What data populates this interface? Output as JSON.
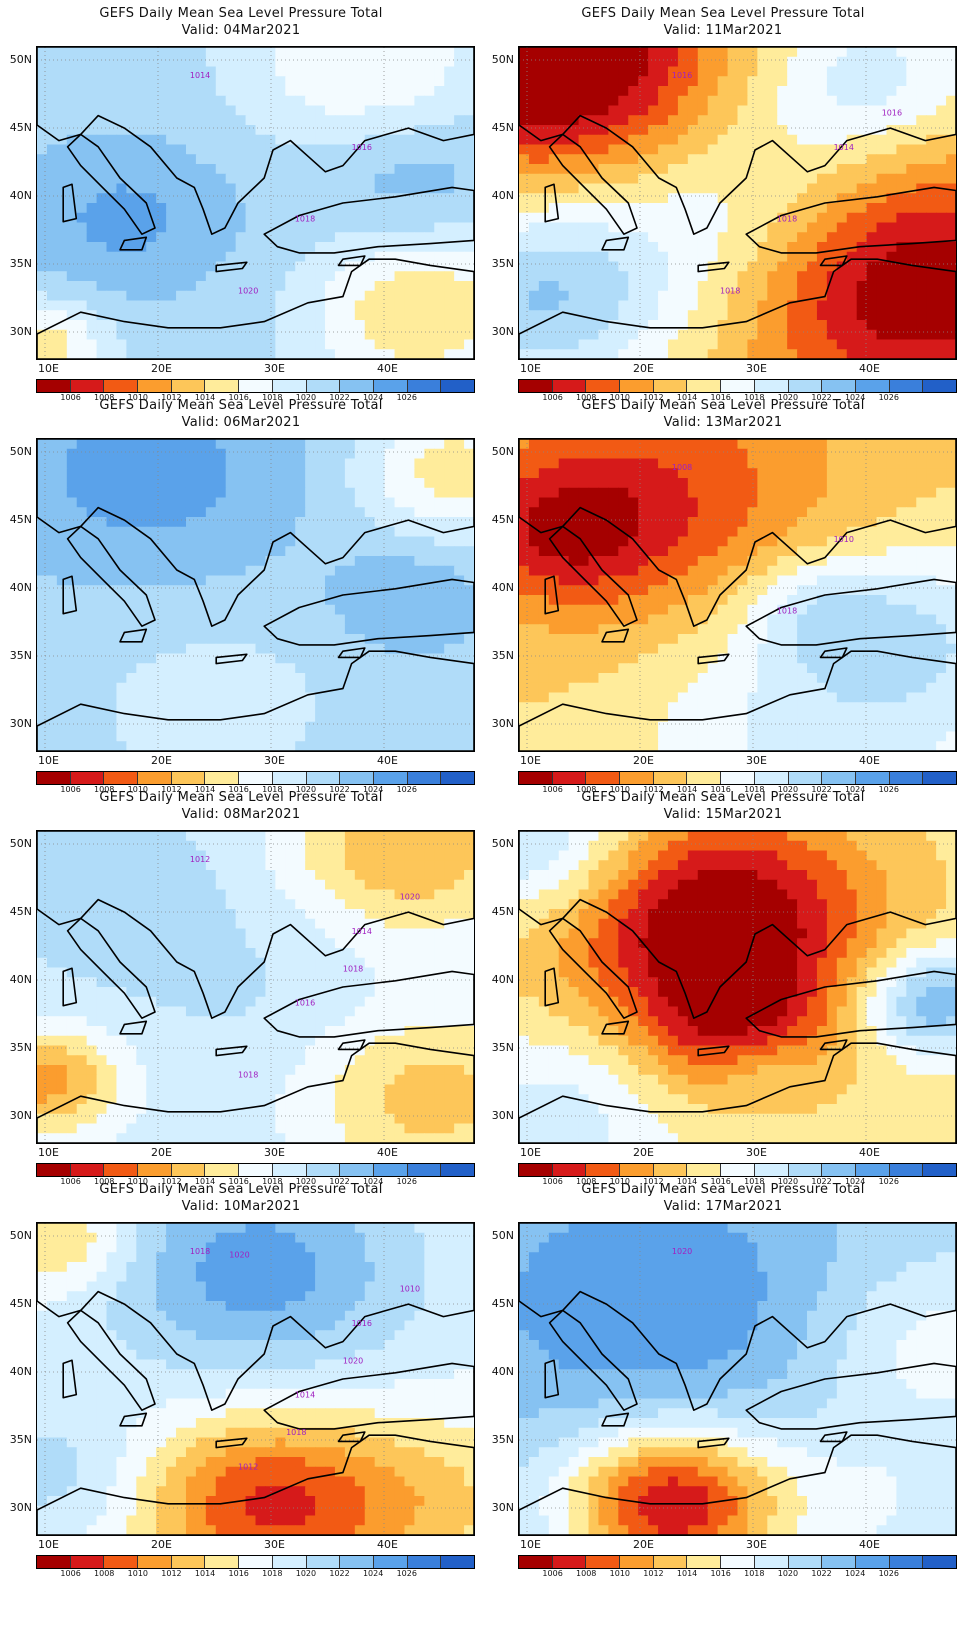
{
  "title": "GEFS Daily Mean Sea Level Pressure Total",
  "valid_prefix": "Valid:",
  "lat_labels": [
    "50N",
    "45N",
    "40N",
    "35N",
    "30N"
  ],
  "lon_labels": [
    "10E",
    "20E",
    "30E",
    "40E"
  ],
  "colorbar": {
    "ticks": [
      "1006",
      "1008",
      "1010",
      "1012",
      "1014",
      "1016",
      "1018",
      "1020",
      "1022",
      "1024",
      "1026"
    ],
    "colors": [
      "#a50000",
      "#d61a1a",
      "#f25a14",
      "#fb9d2e",
      "#fdc659",
      "#ffec9b",
      "#f3fbff",
      "#d4efff",
      "#b0dcf9",
      "#86c2f2",
      "#5aa2ea",
      "#3a7fdb",
      "#2260c8"
    ]
  },
  "contour_color": "#a020c0",
  "panels": [
    {
      "valid": "Valid: 04Mar2021",
      "contour_labels": [
        "1014",
        "1016",
        "1018",
        "1020"
      ]
    },
    {
      "valid": "Valid: 11Mar2021",
      "contour_labels": [
        "1016",
        "1014",
        "1018",
        "1018",
        "1016"
      ]
    },
    {
      "valid": "Valid: 06Mar2021",
      "contour_labels": []
    },
    {
      "valid": "Valid: 13Mar2021",
      "contour_labels": [
        "1008",
        "1010",
        "1018"
      ]
    },
    {
      "valid": "Valid: 08Mar2021",
      "contour_labels": [
        "1012",
        "1014",
        "1016",
        "1018",
        "1020",
        "1018"
      ]
    },
    {
      "valid": "Valid: 15Mar2021",
      "contour_labels": []
    },
    {
      "valid": "Valid: 10Mar2021",
      "contour_labels": [
        "1018",
        "1016",
        "1014",
        "1012",
        "1010",
        "1020",
        "1018",
        "1020"
      ]
    },
    {
      "valid": "Valid: 17Mar2021",
      "contour_labels": [
        "1020"
      ]
    }
  ]
}
